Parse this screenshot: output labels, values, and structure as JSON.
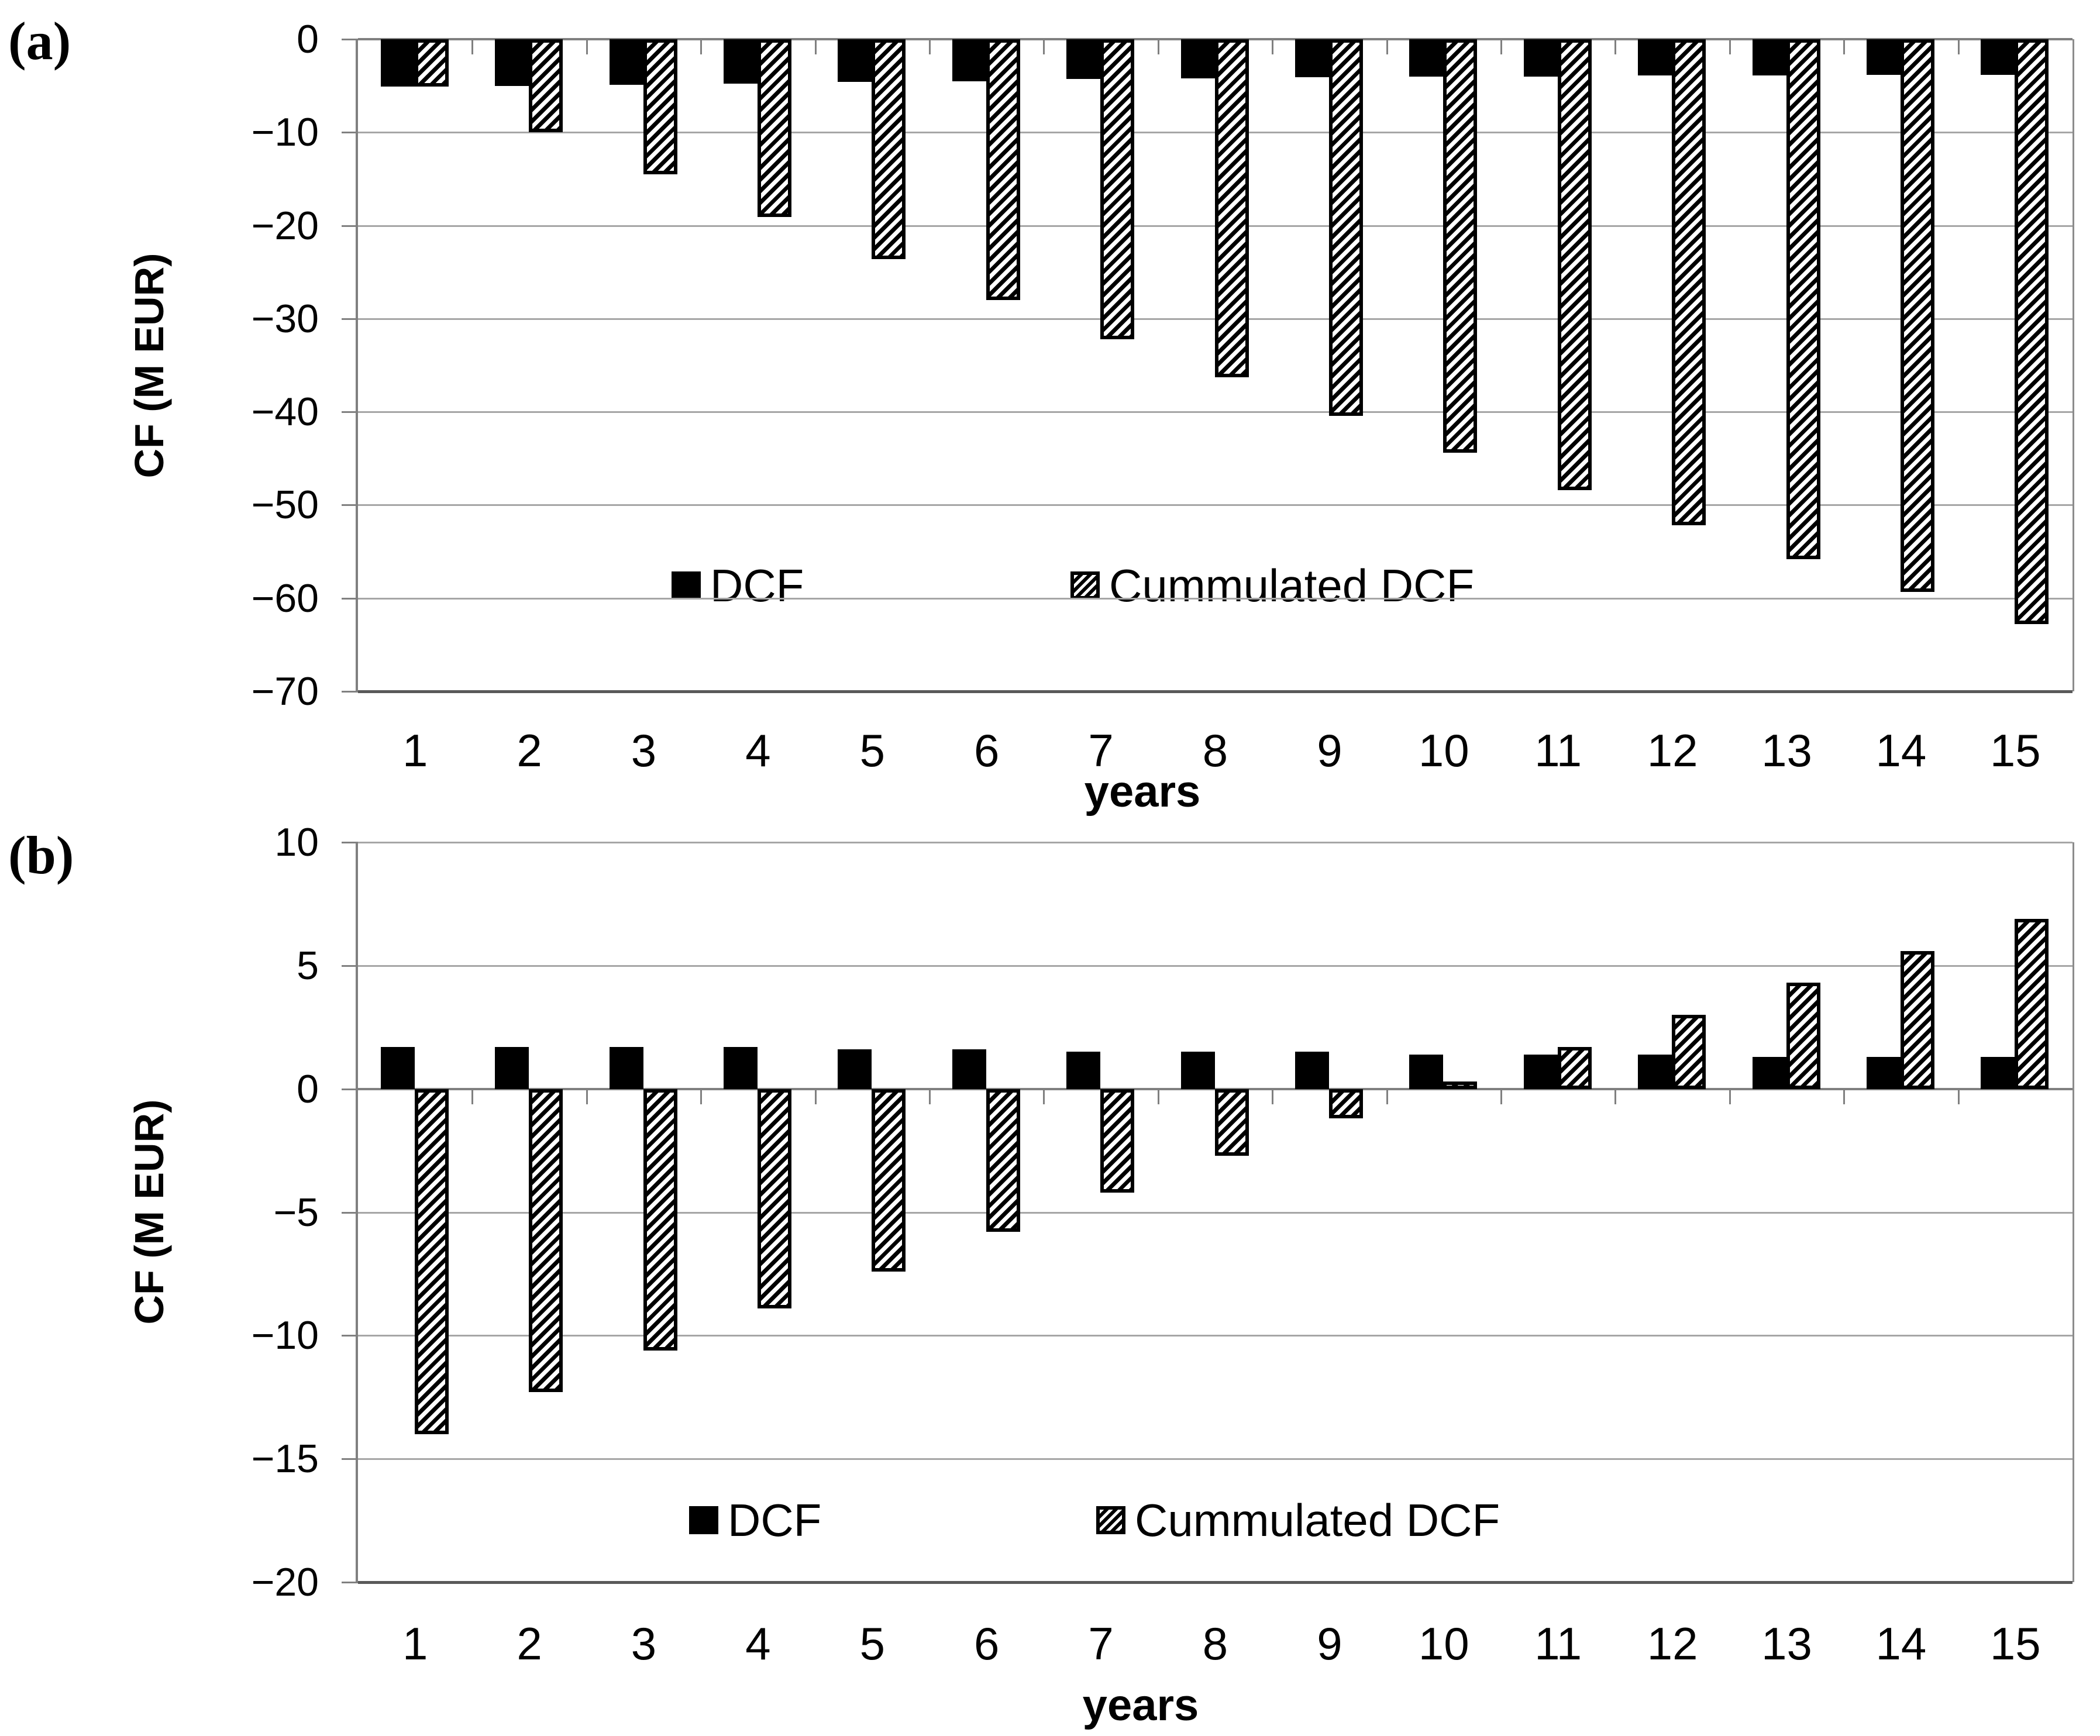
{
  "colors": {
    "bar_fill": "#000000",
    "hatch_stripe": "#000000",
    "gridline": "#a6a6a6",
    "zero_axis": "#808080",
    "frame_axis": "#595959",
    "background": "#ffffff"
  },
  "chart_data": [
    {
      "type": "bar",
      "panel": "(a)",
      "xlabel": "years",
      "ylabel": "CF (M EUR)",
      "ylim": [
        -70,
        0
      ],
      "yticks": [
        0,
        -10,
        -20,
        -30,
        -40,
        -50,
        -60,
        -70
      ],
      "grid": true,
      "legend_position": "inside-bottom",
      "categories": [
        1,
        2,
        3,
        4,
        5,
        6,
        7,
        8,
        9,
        10,
        11,
        12,
        13,
        14,
        15
      ],
      "series": [
        {
          "name": "DCF",
          "style": "solid-black",
          "values": [
            -5.1,
            -5.0,
            -4.9,
            -4.8,
            -4.6,
            -4.5,
            -4.3,
            -4.2,
            -4.1,
            -4.0,
            -4.0,
            -3.9,
            -3.9,
            -3.8,
            -3.8
          ]
        },
        {
          "name": "Cummulated DCF",
          "style": "diagonal-hatch",
          "values": [
            -5.1,
            -10.0,
            -14.5,
            -19.1,
            -23.6,
            -28.0,
            -32.2,
            -36.3,
            -40.4,
            -44.4,
            -48.4,
            -52.2,
            -55.8,
            -59.3,
            -62.8
          ]
        }
      ]
    },
    {
      "type": "bar",
      "panel": "(b)",
      "xlabel": "years",
      "ylabel": "CF (M EUR)",
      "ylim": [
        -20,
        10
      ],
      "yticks": [
        10,
        5,
        0,
        -5,
        -10,
        -15,
        -20
      ],
      "grid": true,
      "legend_position": "inside-bottom",
      "categories": [
        1,
        2,
        3,
        4,
        5,
        6,
        7,
        8,
        9,
        10,
        11,
        12,
        13,
        14,
        15
      ],
      "series": [
        {
          "name": "DCF",
          "style": "solid-black",
          "values": [
            1.7,
            1.7,
            1.7,
            1.7,
            1.6,
            1.6,
            1.5,
            1.5,
            1.5,
            1.4,
            1.4,
            1.4,
            1.3,
            1.3,
            1.3
          ]
        },
        {
          "name": "Cummulated DCF",
          "style": "diagonal-hatch",
          "values": [
            -14.0,
            -12.3,
            -10.6,
            -8.9,
            -7.4,
            -5.8,
            -4.2,
            -2.7,
            -1.2,
            0.3,
            1.7,
            3.0,
            4.3,
            5.6,
            6.9
          ]
        }
      ]
    }
  ]
}
